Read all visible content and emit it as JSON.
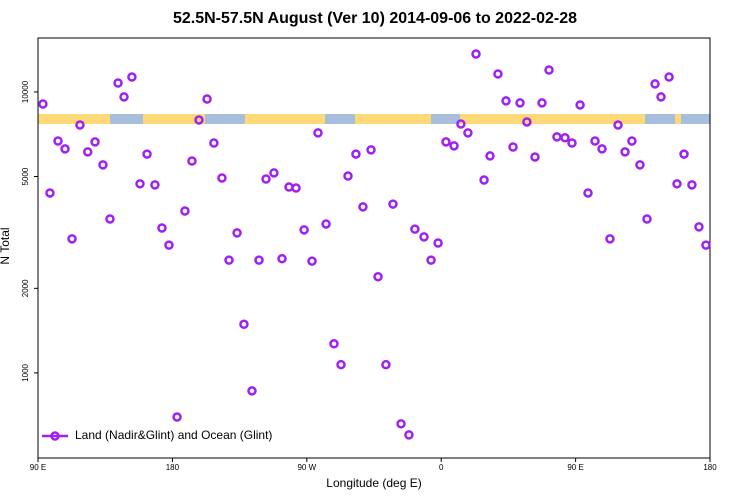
{
  "chart_data": {
    "type": "scatter",
    "title": "52.5N-57.5N August (Ver 10)   2014-09-06 to 2022-02-28",
    "x_label": "Longitude (deg E)",
    "y_label": "N Total",
    "log_y": true,
    "legend": "bottom-left",
    "xlim": [
      90,
      540
    ],
    "ylim": [
      498,
      15560
    ],
    "xticks": [
      {
        "value": 90,
        "label": "90 E"
      },
      {
        "value": 180,
        "label": "180"
      },
      {
        "value": 270,
        "label": "90 W"
      },
      {
        "value": 360,
        "label": "0"
      },
      {
        "value": 450,
        "label": "90 E"
      },
      {
        "value": 540,
        "label": "180"
      }
    ],
    "yticks": [
      1000,
      2000,
      5000,
      10000
    ],
    "series": [
      {
        "name": "Land (Nadir&Glint) and Ocean (Glint)",
        "color": "#a020f0",
        "x": [
          93.3,
          98.0,
          103.4,
          108.1,
          112.8,
          118.1,
          123.3,
          128.2,
          133.5,
          138.2,
          143.6,
          147.6,
          152.9,
          158.3,
          163.0,
          168.3,
          173.0,
          177.7,
          183.1,
          188.4,
          193.1,
          197.8,
          203.2,
          207.8,
          213.2,
          217.9,
          223.3,
          227.9,
          233.3,
          238.0,
          242.7,
          248.0,
          253.4,
          258.1,
          262.8,
          268.2,
          273.5,
          277.5,
          282.9,
          288.2,
          292.9,
          297.6,
          302.9,
          307.6,
          313.0,
          317.7,
          323.0,
          327.7,
          333.1,
          338.4,
          342.4,
          348.5,
          353.2,
          357.9,
          363.2,
          368.6,
          373.2,
          377.9,
          383.3,
          388.7,
          392.7,
          398.0,
          403.4,
          408.1,
          412.8,
          417.4,
          422.8,
          427.5,
          432.2,
          437.5,
          442.9,
          447.6,
          453.0,
          458.3,
          463.0,
          467.7,
          473.0,
          478.4,
          483.1,
          487.7,
          493.1,
          497.8,
          503.2,
          507.2,
          512.6,
          517.9,
          522.6,
          527.9,
          532.6,
          537.3
        ],
        "values": [
          9060,
          4370,
          6690,
          6270,
          3000,
          7630,
          6120,
          6640,
          5500,
          3530,
          10760,
          9600,
          11300,
          4710,
          6010,
          4670,
          3280,
          2850,
          697,
          3770,
          5680,
          7950,
          9440,
          6580,
          4940,
          2520,
          3150,
          1490,
          863,
          2520,
          4900,
          5150,
          2550,
          4590,
          4550,
          3230,
          2500,
          7150,
          3390,
          1270,
          1070,
          5020,
          6010,
          3900,
          6220,
          2200,
          1070,
          3990,
          659,
          602,
          3250,
          3050,
          2520,
          2900,
          6640,
          6430,
          7690,
          7150,
          13650,
          4860,
          5920,
          11590,
          9290,
          6370,
          9140,
          7820,
          5870,
          9140,
          11970,
          6920,
          6870,
          6580,
          8990,
          4370,
          6690,
          6270,
          3000,
          7630,
          6120,
          6690,
          5500,
          3530,
          10680,
          9600,
          11300,
          4710,
          6010,
          4670,
          3310,
          2850
        ]
      }
    ]
  }
}
